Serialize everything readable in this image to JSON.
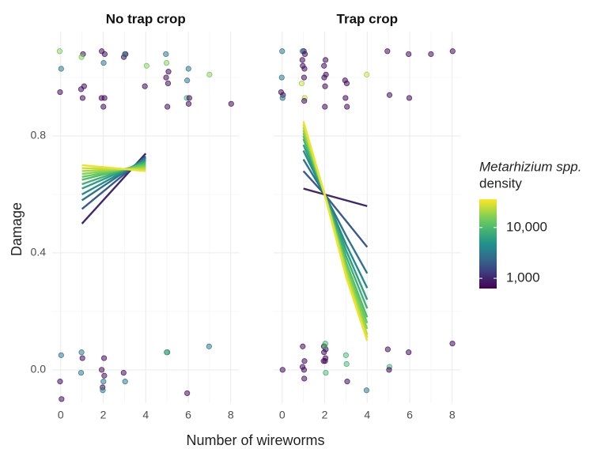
{
  "chart_data": {
    "type": "scatter",
    "xlabel": "Number of wireworms",
    "ylabel": "Damage",
    "xlim": [
      -0.4,
      8.4
    ],
    "xticks": [
      0,
      2,
      4,
      6,
      8
    ],
    "minor_xticks": [
      1,
      3,
      5,
      7
    ],
    "ylim": [
      -0.114,
      1.157
    ],
    "yticks": [
      {
        "value": 0,
        "label": "0.0"
      },
      0.4,
      0.8
    ],
    "minor_yticks": [
      0.2,
      0.6,
      1.0
    ],
    "grid": true,
    "colorbar": {
      "title": [
        "Metarhizium spp.",
        "density"
      ],
      "log": true,
      "lim": [
        630,
        36000
      ],
      "ticks": [
        {
          "value": 1000,
          "label": "1,000"
        },
        {
          "value": 10000,
          "label": "10,000"
        }
      ]
    },
    "panels": [
      {
        "title": "No trap crop",
        "points": {
          "x": [
            -0.05,
            0.02,
            -0.03,
            1.05,
            0.98,
            1.1,
            0.96,
            1.03,
            1.93,
            2.07,
            2.02,
            1.92,
            2.06,
            2.01,
            3.05,
            2.97,
            3.02,
            4.04,
            3.96,
            4.95,
            4.98,
            5.07,
            4.96,
            5.05,
            5.02,
            6.01,
            5.95,
            5.93,
            6.05,
            6.02,
            7.0,
            8.02,
            0.02,
            -0.03,
            0.04,
            0.98,
            1.02,
            0.96,
            2.04,
            1.93,
            2.05,
            2.01,
            1.97,
            1.98,
            2.96,
            3.03,
            5.02,
            4.98,
            5.95,
            6.98
          ],
          "y": [
            1.09,
            1.03,
            0.95,
            1.08,
            1.07,
            0.97,
            0.96,
            0.93,
            1.09,
            1.08,
            1.05,
            0.93,
            0.93,
            0.9,
            1.08,
            1.07,
            1.08,
            1.04,
            0.97,
            1.08,
            1.05,
            1.02,
            1.0,
            0.98,
            0.9,
            1.03,
            0.99,
            0.93,
            0.93,
            0.91,
            1.01,
            0.91,
            0.05,
            -0.04,
            -0.1,
            0.06,
            0.04,
            -0.01,
            0.04,
            0.0,
            -0.02,
            -0.04,
            -0.06,
            -0.07,
            -0.01,
            -0.04,
            0.06,
            0.06,
            -0.08,
            0.08
          ],
          "density": [
            20000,
            4000,
            800,
            800,
            20000,
            800,
            800,
            800,
            800,
            800,
            4000,
            800,
            800,
            800,
            800,
            800,
            4000,
            20000,
            800,
            4000,
            20000,
            800,
            800,
            800,
            800,
            4000,
            4000,
            12000,
            800,
            800,
            20000,
            800,
            4000,
            800,
            800,
            4000,
            800,
            4000,
            800,
            800,
            800,
            4000,
            800,
            4000,
            800,
            4000,
            4000,
            12000,
            800,
            4000
          ]
        },
        "lines": [
          {
            "density": 1000,
            "x": [
              1,
              4
            ],
            "values": [
              0.5,
              0.74
            ]
          },
          {
            "density": 2000,
            "x": [
              1,
              4
            ],
            "values": [
              0.55,
              0.73
            ]
          },
          {
            "density": 3000,
            "x": [
              1,
              4
            ],
            "values": [
              0.58,
              0.725
            ]
          },
          {
            "density": 4500,
            "x": [
              1,
              4
            ],
            "values": [
              0.6,
              0.72
            ]
          },
          {
            "density": 6000,
            "x": [
              1,
              4
            ],
            "values": [
              0.62,
              0.715
            ]
          },
          {
            "density": 8000,
            "x": [
              1,
              4
            ],
            "values": [
              0.635,
              0.71
            ]
          },
          {
            "density": 10500,
            "x": [
              1,
              4
            ],
            "values": [
              0.65,
              0.705
            ]
          },
          {
            "density": 13500,
            "x": [
              1,
              4
            ],
            "values": [
              0.66,
              0.7
            ]
          },
          {
            "density": 17000,
            "x": [
              1,
              4
            ],
            "values": [
              0.67,
              0.695
            ]
          },
          {
            "density": 21000,
            "x": [
              1,
              4
            ],
            "values": [
              0.68,
              0.69
            ]
          },
          {
            "density": 26000,
            "x": [
              1,
              4
            ],
            "values": [
              0.69,
              0.685
            ]
          },
          {
            "density": 32000,
            "x": [
              1,
              4
            ],
            "values": [
              0.7,
              0.68
            ]
          }
        ]
      },
      {
        "title": "Trap crop",
        "points": {
          "x": [
            0.0,
            -0.02,
            -0.05,
            0.04,
            0.02,
            1.02,
            0.96,
            1.07,
            0.95,
            1.05,
            0.97,
            1.03,
            0.92,
            1.06,
            1.04,
            2.04,
            1.97,
            2.06,
            1.98,
            2.02,
            2.01,
            2.96,
            3.04,
            2.98,
            3.05,
            3.98,
            4.95,
            5.05,
            5.95,
            5.98,
            7.0,
            8.02,
            0.02,
            0.97,
            1.05,
            0.96,
            1.03,
            1.04,
            2.03,
            1.96,
            2.05,
            1.97,
            2.04,
            2.02,
            1.95,
            2.0,
            2.05,
            3.0,
            3.03,
            3.06,
            3.97,
            4.97,
            5.05,
            5.03,
            5.95,
            8.01
          ],
          "y": [
            1.09,
            1.0,
            0.95,
            0.94,
            0.93,
            1.09,
            1.09,
            1.08,
            1.06,
            1.03,
            1.04,
            1.0,
            0.98,
            0.93,
            0.92,
            1.06,
            1.04,
            1.01,
            1.0,
            0.97,
            0.9,
            0.99,
            0.98,
            0.93,
            0.9,
            1.01,
            1.09,
            0.94,
            1.08,
            0.93,
            1.08,
            1.09,
            0.0,
            0.08,
            0.03,
            0.01,
            0.0,
            -0.03,
            0.09,
            0.08,
            0.07,
            0.06,
            0.04,
            0.03,
            0.03,
            0.08,
            -0.01,
            0.05,
            0.02,
            -0.04,
            -0.07,
            0.07,
            0.01,
            0.0,
            0.06,
            0.09
          ],
          "density": [
            4000,
            4000,
            800,
            800,
            4000,
            800,
            4000,
            800,
            800,
            800,
            800,
            800,
            30000,
            30000,
            800,
            800,
            800,
            800,
            800,
            800,
            800,
            800,
            800,
            800,
            800,
            30000,
            800,
            800,
            800,
            800,
            800,
            800,
            800,
            800,
            800,
            800,
            800,
            800,
            12000,
            800,
            800,
            800,
            800,
            800,
            800,
            12000,
            12000,
            12000,
            12000,
            800,
            4000,
            800,
            12000,
            800,
            800,
            800
          ]
        },
        "lines": [
          {
            "density": 1000,
            "x": [
              1,
              2,
              3,
              4
            ],
            "values": [
              0.62,
              0.6,
              0.58,
              0.56
            ]
          },
          {
            "density": 2000,
            "x": [
              1,
              2,
              3,
              4
            ],
            "values": [
              0.68,
              0.6,
              0.51,
              0.42
            ]
          },
          {
            "density": 3000,
            "x": [
              1,
              2,
              3,
              4
            ],
            "values": [
              0.72,
              0.6,
              0.46,
              0.33
            ]
          },
          {
            "density": 4500,
            "x": [
              1,
              2,
              3,
              4
            ],
            "values": [
              0.75,
              0.6,
              0.43,
              0.28
            ]
          },
          {
            "density": 6000,
            "x": [
              1,
              2,
              3,
              4
            ],
            "values": [
              0.77,
              0.6,
              0.41,
              0.24
            ]
          },
          {
            "density": 8000,
            "x": [
              1,
              2,
              3,
              4
            ],
            "values": [
              0.79,
              0.6,
              0.39,
              0.21
            ]
          },
          {
            "density": 10500,
            "x": [
              1,
              2,
              3,
              4
            ],
            "values": [
              0.8,
              0.6,
              0.37,
              0.18
            ]
          },
          {
            "density": 13500,
            "x": [
              1,
              2,
              3,
              4
            ],
            "values": [
              0.81,
              0.6,
              0.36,
              0.16
            ]
          },
          {
            "density": 17000,
            "x": [
              1,
              2,
              3,
              4
            ],
            "values": [
              0.82,
              0.6,
              0.35,
              0.14
            ]
          },
          {
            "density": 21000,
            "x": [
              1,
              2,
              3,
              4
            ],
            "values": [
              0.83,
              0.6,
              0.34,
              0.12
            ]
          },
          {
            "density": 26000,
            "x": [
              1,
              2,
              3,
              4
            ],
            "values": [
              0.84,
              0.6,
              0.33,
              0.11
            ]
          },
          {
            "density": 32000,
            "x": [
              1,
              2,
              3,
              4
            ],
            "values": [
              0.85,
              0.6,
              0.32,
              0.1
            ]
          }
        ]
      }
    ]
  }
}
